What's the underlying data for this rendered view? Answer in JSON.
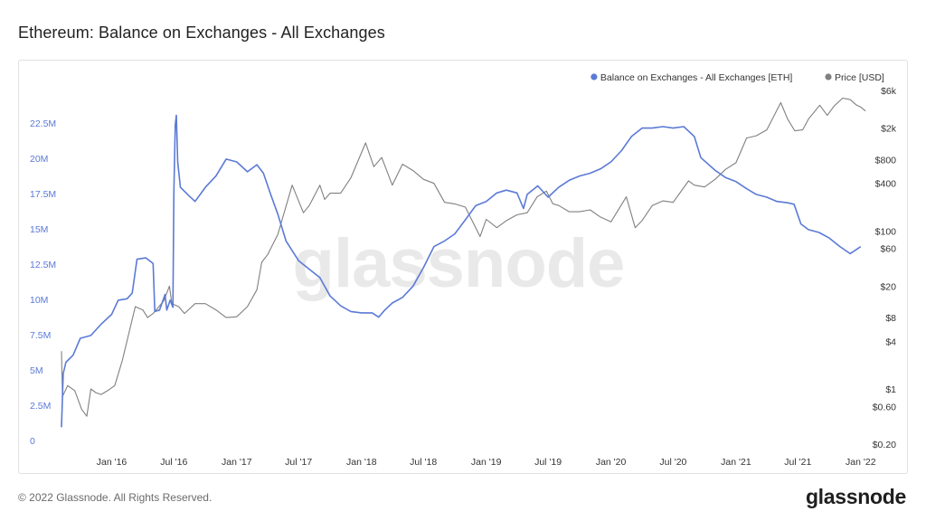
{
  "header": {
    "title": "Ethereum: Balance on Exchanges - All Exchanges"
  },
  "footer": {
    "copyright": "© 2022 Glassnode. All Rights Reserved.",
    "logo_text": "glassnode"
  },
  "watermark": "glassnode",
  "colors": {
    "balance": "#5b7ad6",
    "price": "#808080",
    "left_ticks": "#5b7ad6"
  },
  "chart_data": {
    "type": "line",
    "title": "Ethereum: Balance on Exchanges - All Exchanges",
    "legend": {
      "placement": "top-right",
      "entries": [
        {
          "label": "Balance on Exchanges - All Exchanges [ETH]",
          "color": "#5b7ad6"
        },
        {
          "label": "Price [USD]",
          "color": "#808080"
        }
      ]
    },
    "x_axis": {
      "type": "date",
      "range": [
        "2015-08-07",
        "2022-01-20"
      ],
      "ticks": [
        {
          "label": "Jan '16",
          "date": "2016-01-01"
        },
        {
          "label": "Jul '16",
          "date": "2016-07-01"
        },
        {
          "label": "Jan '17",
          "date": "2017-01-01"
        },
        {
          "label": "Jul '17",
          "date": "2017-07-01"
        },
        {
          "label": "Jan '18",
          "date": "2018-01-01"
        },
        {
          "label": "Jul '18",
          "date": "2018-07-01"
        },
        {
          "label": "Jan '19",
          "date": "2019-01-01"
        },
        {
          "label": "Jul '19",
          "date": "2019-07-01"
        },
        {
          "label": "Jan '20",
          "date": "2020-01-01"
        },
        {
          "label": "Jul '20",
          "date": "2020-07-01"
        },
        {
          "label": "Jan '21",
          "date": "2021-01-01"
        },
        {
          "label": "Jul '21",
          "date": "2021-07-01"
        },
        {
          "label": "Jan '22",
          "date": "2022-01-01"
        }
      ]
    },
    "y_left": {
      "range": [
        0,
        25000000
      ],
      "ticks": [
        {
          "label": "0",
          "value": 0
        },
        {
          "label": "2.5M",
          "value": 2500000
        },
        {
          "label": "5M",
          "value": 5000000
        },
        {
          "label": "7.5M",
          "value": 7500000
        },
        {
          "label": "10M",
          "value": 10000000
        },
        {
          "label": "12.5M",
          "value": 12500000
        },
        {
          "label": "15M",
          "value": 15000000
        },
        {
          "label": "17.5M",
          "value": 17500000
        },
        {
          "label": "20M",
          "value": 20000000
        },
        {
          "label": "22.5M",
          "value": 22500000
        }
      ]
    },
    "y_right": {
      "scale": "log",
      "range": [
        0.2,
        6000
      ],
      "ticks": [
        {
          "label": "$0.20",
          "value": 0.2
        },
        {
          "label": "$0.60",
          "value": 0.6
        },
        {
          "label": "$1",
          "value": 1
        },
        {
          "label": "$4",
          "value": 4
        },
        {
          "label": "$8",
          "value": 8
        },
        {
          "label": "$20",
          "value": 20
        },
        {
          "label": "$60",
          "value": 60
        },
        {
          "label": "$100",
          "value": 100
        },
        {
          "label": "$400",
          "value": 400
        },
        {
          "label": "$800",
          "value": 800
        },
        {
          "label": "$2k",
          "value": 2000
        },
        {
          "label": "$6k",
          "value": 6000
        }
      ]
    },
    "grid": false,
    "series": [
      {
        "name": "Balance on Exchanges - All Exchanges [ETH]",
        "axis": "left",
        "points": [
          [
            "2015-08-07",
            1200000
          ],
          [
            "2015-08-12",
            5000000
          ],
          [
            "2015-08-20",
            5800000
          ],
          [
            "2015-09-10",
            6300000
          ],
          [
            "2015-10-01",
            7500000
          ],
          [
            "2015-11-01",
            7700000
          ],
          [
            "2015-12-01",
            8500000
          ],
          [
            "2016-01-01",
            9200000
          ],
          [
            "2016-01-20",
            10200000
          ],
          [
            "2016-02-15",
            10300000
          ],
          [
            "2016-03-01",
            10700000
          ],
          [
            "2016-03-15",
            13100000
          ],
          [
            "2016-04-10",
            13200000
          ],
          [
            "2016-05-01",
            12800000
          ],
          [
            "2016-05-06",
            9400000
          ],
          [
            "2016-05-20",
            9500000
          ],
          [
            "2016-06-05",
            10600000
          ],
          [
            "2016-06-10",
            9500000
          ],
          [
            "2016-06-20",
            10200000
          ],
          [
            "2016-06-28",
            9700000
          ],
          [
            "2016-07-01",
            18000000
          ],
          [
            "2016-07-05",
            22600000
          ],
          [
            "2016-07-08",
            23300000
          ],
          [
            "2016-07-12",
            20000000
          ],
          [
            "2016-07-20",
            18200000
          ],
          [
            "2016-08-10",
            17700000
          ],
          [
            "2016-09-01",
            17200000
          ],
          [
            "2016-10-01",
            18200000
          ],
          [
            "2016-11-01",
            19000000
          ],
          [
            "2016-12-01",
            20200000
          ],
          [
            "2017-01-01",
            20000000
          ],
          [
            "2017-02-01",
            19300000
          ],
          [
            "2017-03-01",
            19800000
          ],
          [
            "2017-03-20",
            19200000
          ],
          [
            "2017-04-10",
            17700000
          ],
          [
            "2017-05-01",
            16300000
          ],
          [
            "2017-05-25",
            14400000
          ],
          [
            "2017-07-01",
            13000000
          ],
          [
            "2017-08-01",
            12400000
          ],
          [
            "2017-09-01",
            11800000
          ],
          [
            "2017-10-01",
            10500000
          ],
          [
            "2017-11-01",
            9800000
          ],
          [
            "2017-12-01",
            9400000
          ],
          [
            "2018-01-01",
            9300000
          ],
          [
            "2018-02-01",
            9300000
          ],
          [
            "2018-02-20",
            9000000
          ],
          [
            "2018-03-10",
            9500000
          ],
          [
            "2018-04-01",
            10000000
          ],
          [
            "2018-05-01",
            10400000
          ],
          [
            "2018-06-01",
            11200000
          ],
          [
            "2018-07-01",
            12500000
          ],
          [
            "2018-08-01",
            14000000
          ],
          [
            "2018-09-01",
            14400000
          ],
          [
            "2018-10-01",
            14900000
          ],
          [
            "2018-11-01",
            15900000
          ],
          [
            "2018-12-01",
            16900000
          ],
          [
            "2019-01-01",
            17200000
          ],
          [
            "2019-02-01",
            17800000
          ],
          [
            "2019-03-01",
            18000000
          ],
          [
            "2019-04-01",
            17800000
          ],
          [
            "2019-04-20",
            16700000
          ],
          [
            "2019-05-01",
            17700000
          ],
          [
            "2019-06-01",
            18300000
          ],
          [
            "2019-07-01",
            17500000
          ],
          [
            "2019-08-01",
            18200000
          ],
          [
            "2019-09-01",
            18700000
          ],
          [
            "2019-10-01",
            19000000
          ],
          [
            "2019-11-01",
            19200000
          ],
          [
            "2019-12-01",
            19500000
          ],
          [
            "2020-01-01",
            20000000
          ],
          [
            "2020-02-01",
            20800000
          ],
          [
            "2020-03-01",
            21800000
          ],
          [
            "2020-04-01",
            22400000
          ],
          [
            "2020-05-01",
            22400000
          ],
          [
            "2020-06-01",
            22500000
          ],
          [
            "2020-07-01",
            22400000
          ],
          [
            "2020-08-01",
            22500000
          ],
          [
            "2020-09-01",
            21800000
          ],
          [
            "2020-09-20",
            20300000
          ],
          [
            "2020-11-01",
            19400000
          ],
          [
            "2020-12-01",
            18900000
          ],
          [
            "2021-01-01",
            18600000
          ],
          [
            "2021-02-01",
            18100000
          ],
          [
            "2021-03-01",
            17700000
          ],
          [
            "2021-04-01",
            17500000
          ],
          [
            "2021-05-01",
            17200000
          ],
          [
            "2021-06-01",
            17100000
          ],
          [
            "2021-06-20",
            17000000
          ],
          [
            "2021-07-10",
            15600000
          ],
          [
            "2021-08-01",
            15200000
          ],
          [
            "2021-09-01",
            15000000
          ],
          [
            "2021-10-01",
            14600000
          ],
          [
            "2021-11-01",
            14000000
          ],
          [
            "2021-12-01",
            13500000
          ],
          [
            "2021-12-20",
            13800000
          ],
          [
            "2022-01-01",
            14000000
          ]
        ]
      },
      {
        "name": "Price [USD]",
        "axis": "right",
        "points": [
          [
            "2015-08-07",
            3
          ],
          [
            "2015-08-10",
            0.8
          ],
          [
            "2015-08-25",
            1.1
          ],
          [
            "2015-09-15",
            0.95
          ],
          [
            "2015-10-05",
            0.55
          ],
          [
            "2015-10-20",
            0.45
          ],
          [
            "2015-11-01",
            1.0
          ],
          [
            "2015-11-15",
            0.9
          ],
          [
            "2015-12-01",
            0.85
          ],
          [
            "2015-12-20",
            0.95
          ],
          [
            "2016-01-10",
            1.1
          ],
          [
            "2016-02-01",
            2.3
          ],
          [
            "2016-02-20",
            5
          ],
          [
            "2016-03-10",
            11
          ],
          [
            "2016-04-01",
            10
          ],
          [
            "2016-04-15",
            8
          ],
          [
            "2016-05-01",
            9
          ],
          [
            "2016-06-01",
            13
          ],
          [
            "2016-06-18",
            20
          ],
          [
            "2016-06-25",
            12
          ],
          [
            "2016-07-15",
            11
          ],
          [
            "2016-08-01",
            9
          ],
          [
            "2016-09-01",
            12
          ],
          [
            "2016-10-01",
            12
          ],
          [
            "2016-11-01",
            10
          ],
          [
            "2016-12-01",
            8
          ],
          [
            "2017-01-01",
            8.2
          ],
          [
            "2017-02-01",
            11
          ],
          [
            "2017-03-01",
            18
          ],
          [
            "2017-03-15",
            40
          ],
          [
            "2017-04-01",
            50
          ],
          [
            "2017-05-01",
            90
          ],
          [
            "2017-06-12",
            380
          ],
          [
            "2017-07-15",
            170
          ],
          [
            "2017-08-01",
            210
          ],
          [
            "2017-08-20",
            300
          ],
          [
            "2017-09-01",
            380
          ],
          [
            "2017-09-15",
            250
          ],
          [
            "2017-10-01",
            300
          ],
          [
            "2017-11-01",
            300
          ],
          [
            "2017-12-01",
            470
          ],
          [
            "2018-01-13",
            1300
          ],
          [
            "2018-02-06",
            650
          ],
          [
            "2018-03-01",
            850
          ],
          [
            "2018-04-01",
            380
          ],
          [
            "2018-05-01",
            700
          ],
          [
            "2018-06-01",
            580
          ],
          [
            "2018-07-01",
            450
          ],
          [
            "2018-08-01",
            400
          ],
          [
            "2018-09-01",
            230
          ],
          [
            "2018-10-01",
            220
          ],
          [
            "2018-11-01",
            200
          ],
          [
            "2018-12-14",
            85
          ],
          [
            "2019-01-01",
            140
          ],
          [
            "2019-02-01",
            110
          ],
          [
            "2019-03-01",
            135
          ],
          [
            "2019-04-01",
            160
          ],
          [
            "2019-05-01",
            170
          ],
          [
            "2019-05-30",
            270
          ],
          [
            "2019-06-26",
            320
          ],
          [
            "2019-07-15",
            220
          ],
          [
            "2019-08-01",
            210
          ],
          [
            "2019-09-01",
            175
          ],
          [
            "2019-10-01",
            175
          ],
          [
            "2019-11-01",
            185
          ],
          [
            "2019-12-01",
            150
          ],
          [
            "2020-01-01",
            130
          ],
          [
            "2020-02-15",
            270
          ],
          [
            "2020-03-12",
            110
          ],
          [
            "2020-04-01",
            135
          ],
          [
            "2020-05-01",
            210
          ],
          [
            "2020-06-01",
            240
          ],
          [
            "2020-07-01",
            230
          ],
          [
            "2020-08-15",
            430
          ],
          [
            "2020-09-01",
            380
          ],
          [
            "2020-10-01",
            360
          ],
          [
            "2020-11-01",
            450
          ],
          [
            "2020-12-01",
            600
          ],
          [
            "2021-01-01",
            730
          ],
          [
            "2021-02-01",
            1500
          ],
          [
            "2021-03-01",
            1600
          ],
          [
            "2021-04-01",
            1900
          ],
          [
            "2021-05-12",
            4200
          ],
          [
            "2021-06-01",
            2600
          ],
          [
            "2021-06-22",
            1850
          ],
          [
            "2021-07-15",
            1900
          ],
          [
            "2021-08-01",
            2600
          ],
          [
            "2021-09-03",
            3900
          ],
          [
            "2021-09-25",
            2900
          ],
          [
            "2021-10-15",
            3800
          ],
          [
            "2021-11-09",
            4800
          ],
          [
            "2021-12-01",
            4600
          ],
          [
            "2021-12-20",
            3900
          ],
          [
            "2022-01-01",
            3700
          ],
          [
            "2022-01-15",
            3300
          ]
        ]
      }
    ]
  }
}
